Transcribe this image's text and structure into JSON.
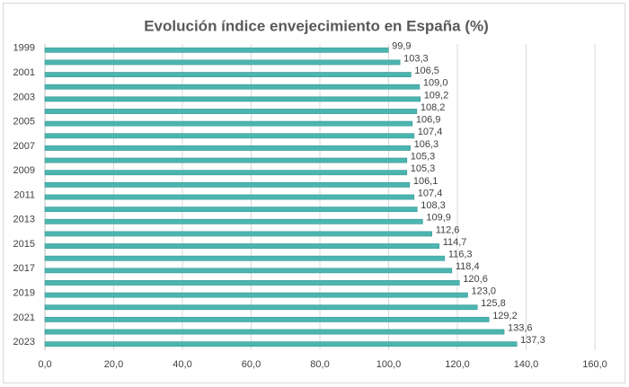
{
  "chart_data": {
    "type": "bar",
    "orientation": "horizontal",
    "title": "Evolución índice envejecimiento en España (%)",
    "categories": [
      "1999",
      null,
      "2001",
      null,
      "2003",
      null,
      "2005",
      null,
      "2007",
      null,
      "2009",
      null,
      "2011",
      null,
      "2013",
      null,
      "2015",
      null,
      "2017",
      null,
      "2019",
      null,
      "2021",
      null,
      "2023"
    ],
    "values": [
      99.9,
      103.3,
      106.5,
      109.0,
      109.2,
      108.2,
      106.9,
      107.4,
      106.3,
      105.3,
      105.3,
      106.1,
      107.4,
      108.3,
      109.9,
      112.6,
      114.7,
      116.3,
      118.4,
      120.6,
      123.0,
      125.8,
      129.2,
      133.6,
      137.3
    ],
    "value_labels": [
      "99,9",
      "103,3",
      "106,5",
      "109,0",
      "109,2",
      "108,2",
      "106,9",
      "107,4",
      "106,3",
      "105,3",
      "105,3",
      "106,1",
      "107,4",
      "108,3",
      "109,9",
      "112,6",
      "114,7",
      "116,3",
      "118,4",
      "120,6",
      "123,0",
      "125,8",
      "129,2",
      "133,6",
      "137,3"
    ],
    "color": "#4bb5b0",
    "xlim": [
      0,
      160
    ],
    "xticks": [
      {
        "value": 0,
        "label": "0,0"
      },
      {
        "value": 20,
        "label": "20,0"
      },
      {
        "value": 40,
        "label": "40,0"
      },
      {
        "value": 60,
        "label": "60,0"
      },
      {
        "value": 80,
        "label": "80,0"
      },
      {
        "value": 100,
        "label": "100,0"
      },
      {
        "value": 120,
        "label": "120,0"
      },
      {
        "value": 140,
        "label": "140,0"
      },
      {
        "value": 160,
        "label": "160,0"
      }
    ],
    "grid": true
  }
}
